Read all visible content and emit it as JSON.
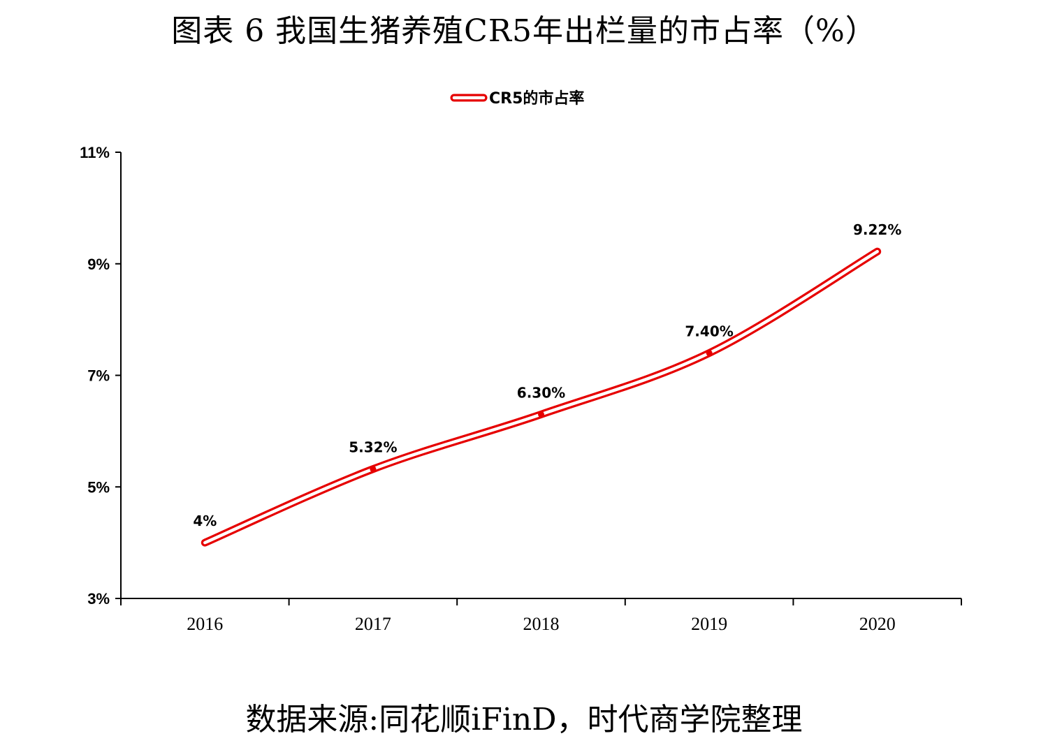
{
  "title": "图表 6 我国生猪养殖CR5年出栏量的市占率（%）",
  "source": "数据来源:同花顺iFinD，时代商学院整理",
  "chart_data": {
    "type": "line",
    "categories": [
      "2016",
      "2017",
      "2018",
      "2019",
      "2020"
    ],
    "series": [
      {
        "name": "CR5的市占率",
        "values": [
          4,
          5.32,
          6.3,
          7.4,
          9.22
        ],
        "data_labels": [
          "4%",
          "5.32%",
          "6.30%",
          "7.40%",
          "9.22%"
        ],
        "color": "#e60000"
      }
    ],
    "ylim": [
      3,
      11
    ],
    "yticks": [
      3,
      5,
      7,
      9,
      11
    ],
    "ytick_labels": [
      "3%",
      "5%",
      "7%",
      "9%",
      "11%"
    ],
    "smooth": true,
    "legend": "top-center",
    "grid": false
  }
}
